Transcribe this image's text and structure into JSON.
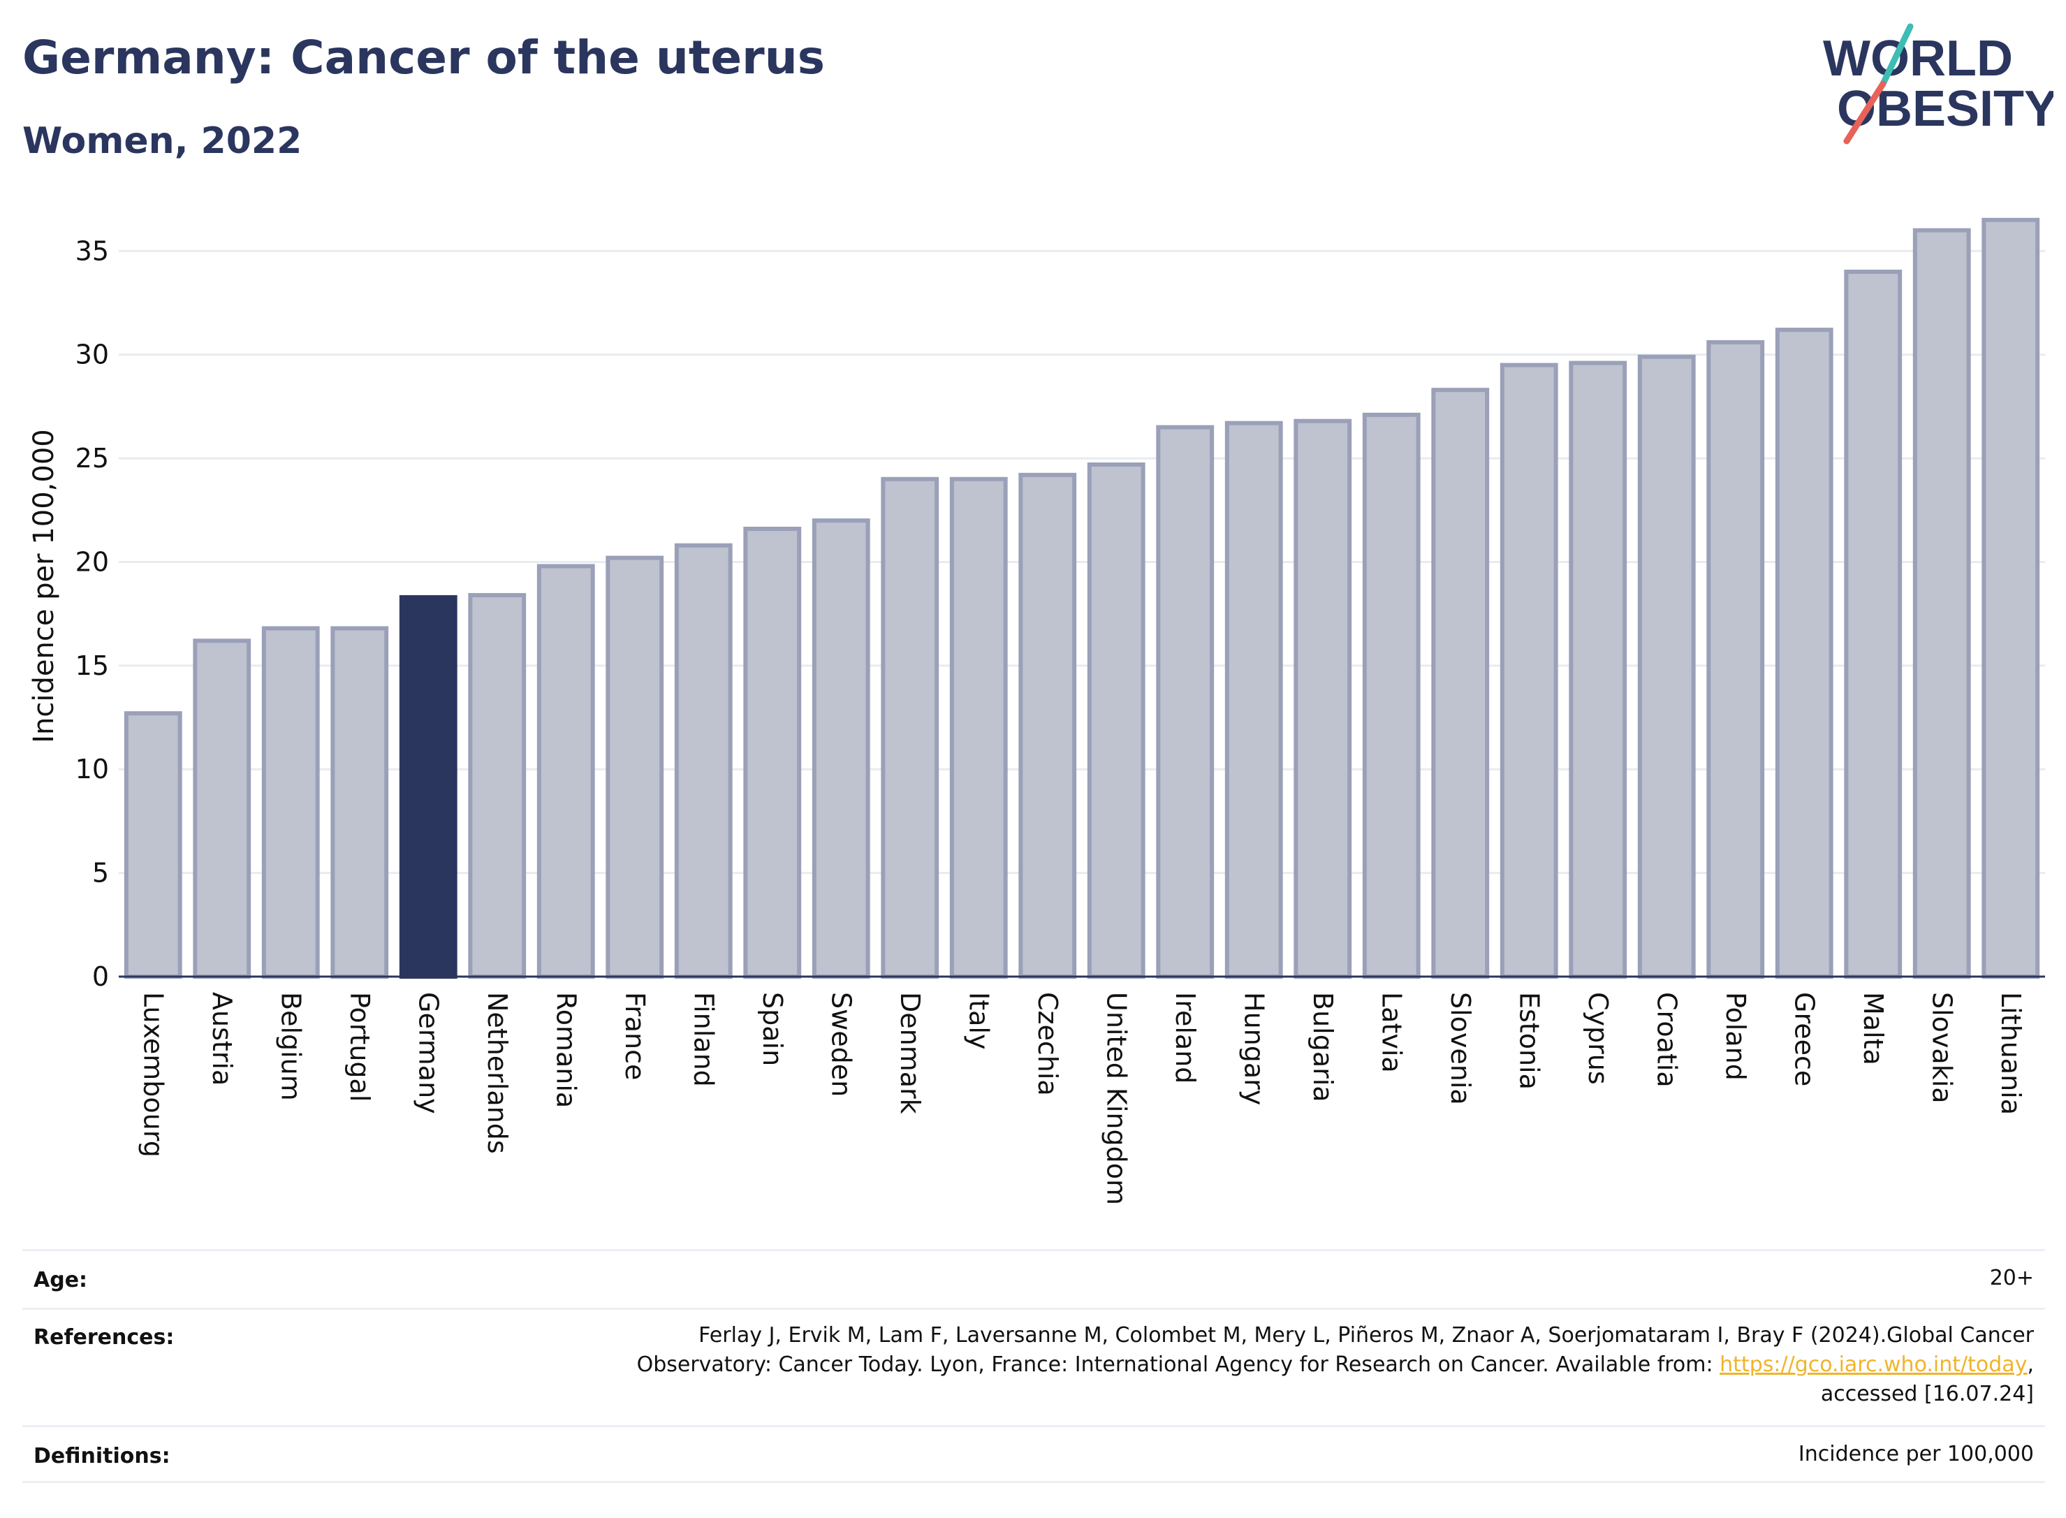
{
  "header": {
    "title": "Germany: Cancer of the uterus",
    "subtitle": "Women, 2022"
  },
  "logo": {
    "line1": "WORLD",
    "line2": "OBESITY"
  },
  "colors": {
    "highlight": "#2b365f",
    "bar_fill": "#bfc2cf",
    "bar_edge": "#9aa0b8",
    "grid": "#e9ebf0",
    "link": "#f0b429",
    "logo_teal": "#3dbdb3",
    "logo_red": "#e8625a"
  },
  "chart_data": {
    "type": "bar",
    "highlight": "Germany",
    "ylabel": "Incidence per 100,000",
    "ylim": [
      0,
      37
    ],
    "yticks": [
      0,
      5,
      10,
      15,
      20,
      25,
      30,
      35
    ],
    "grid": true,
    "categories": [
      "Luxembourg",
      "Austria",
      "Belgium",
      "Portugal",
      "Germany",
      "Netherlands",
      "Romania",
      "France",
      "Finland",
      "Spain",
      "Sweden",
      "Denmark",
      "Italy",
      "Czechia",
      "United Kingdom",
      "Ireland",
      "Hungary",
      "Bulgaria",
      "Latvia",
      "Slovenia",
      "Estonia",
      "Cyprus",
      "Croatia",
      "Poland",
      "Greece",
      "Malta",
      "Slovakia",
      "Lithuania"
    ],
    "values": [
      12.7,
      16.2,
      16.8,
      16.8,
      18.3,
      18.4,
      19.8,
      20.2,
      20.8,
      21.6,
      22.0,
      24.0,
      24.0,
      24.2,
      24.7,
      26.5,
      26.7,
      26.8,
      27.1,
      28.3,
      29.5,
      29.6,
      29.9,
      30.6,
      31.2,
      34.0,
      36.0,
      36.5
    ]
  },
  "meta": {
    "age_label": "Age:",
    "age_value": "20+",
    "references_label": "References:",
    "references_line1": "Ferlay J, Ervik M, Lam F, Laversanne M, Colombet M, Mery L, Piñeros M, Znaor A, Soerjomataram I, Bray F (2024).Global Cancer",
    "references_line2_pre": "Observatory: Cancer Today. Lyon, France: International Agency for Research on Cancer. Available from: ",
    "references_link": "https://gco.iarc.who.int/today",
    "references_line2_post": ",",
    "references_line3": "accessed [16.07.24]",
    "definitions_label": "Definitions:",
    "definitions_value": "Incidence per 100,000"
  }
}
